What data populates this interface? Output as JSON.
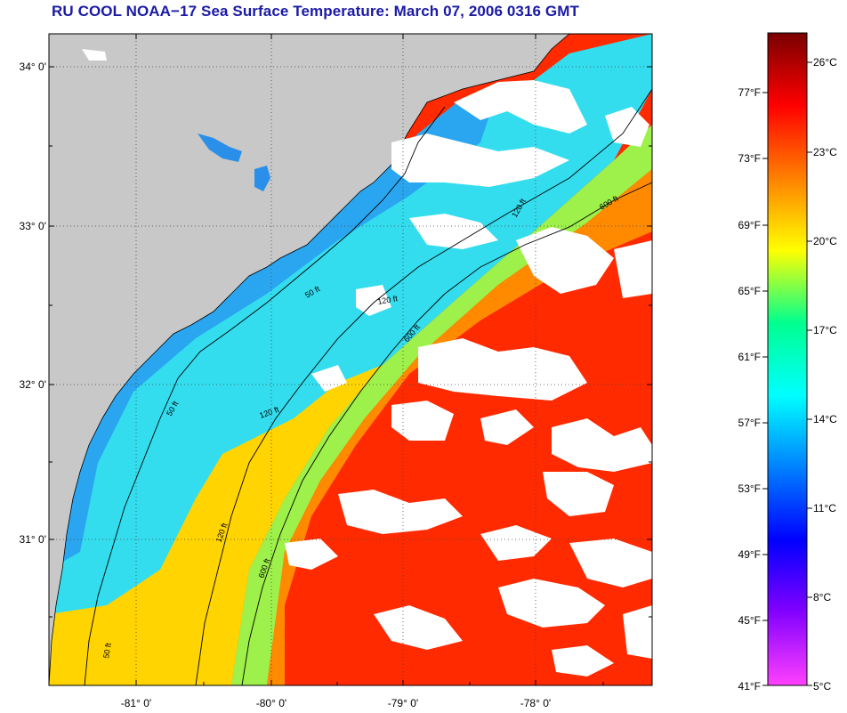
{
  "title": "RU COOL  NOAA−17  Sea Surface Temperature:  March 07, 2006 0316 GMT",
  "map": {
    "lat_labels": [
      "34° 0'",
      "33° 0'",
      "32° 0'",
      "31° 0'"
    ],
    "lon_labels": [
      "-81° 0'",
      "-80° 0'",
      "-79° 0'",
      "-78° 0'"
    ],
    "contour_labels": {
      "c50": "50 ft",
      "c120": "120 ft",
      "c600": "600 ft"
    },
    "colors": {
      "land": "#c8c8c8",
      "cloud": "#ffffff",
      "grid": "#555555"
    }
  },
  "colorbar": {
    "fahrenheit_labels": [
      "77°F",
      "73°F",
      "69°F",
      "65°F",
      "61°F",
      "57°F",
      "53°F",
      "49°F",
      "45°F",
      "41°F"
    ],
    "celsius_labels": [
      "26°C",
      "23°C",
      "20°C",
      "17°C",
      "14°C",
      "11°C",
      "8°C",
      "5°C"
    ],
    "gradient_colors": [
      "#7a0000",
      "#ff0000",
      "#ff8000",
      "#ffff00",
      "#00ff90",
      "#00ffff",
      "#0080ff",
      "#0000ff",
      "#8000ff",
      "#ff40ff"
    ]
  }
}
